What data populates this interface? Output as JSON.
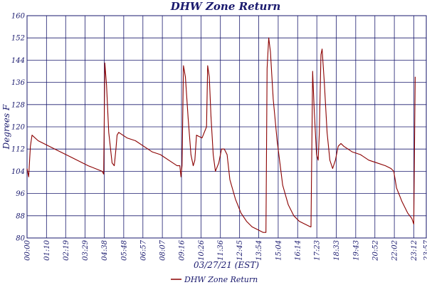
{
  "chart_data": {
    "type": "line",
    "title": "DHW Zone Return",
    "xlabel": "03/27/21 (EST)",
    "ylabel": "Degrees F",
    "ylim": [
      80,
      160
    ],
    "yticks": [
      "80",
      "88",
      "96",
      "104",
      "112",
      "120",
      "128",
      "136",
      "144",
      "152",
      "160"
    ],
    "xlim": [
      "00:00",
      "23:57"
    ],
    "xticks": [
      "00:00",
      "01:10",
      "02:19",
      "03:29",
      "04:38",
      "05:48",
      "06:57",
      "08:07",
      "09:16",
      "10:26",
      "11:36",
      "12:45",
      "13:54",
      "15:04",
      "16:14",
      "17:23",
      "18:33",
      "19:43",
      "20:52",
      "22:02",
      "23:12",
      "23:57"
    ],
    "grid": true,
    "legend_position": "bottom",
    "series": [
      {
        "name": "DHW Zone Return",
        "color": "#8b0000",
        "points": [
          [
            "00:00",
            105
          ],
          [
            "00:06",
            102
          ],
          [
            "00:12",
            113
          ],
          [
            "00:18",
            117
          ],
          [
            "00:40",
            115
          ],
          [
            "01:40",
            112
          ],
          [
            "02:40",
            109
          ],
          [
            "03:40",
            106
          ],
          [
            "04:30",
            104
          ],
          [
            "04:36",
            103
          ],
          [
            "04:40",
            143
          ],
          [
            "04:46",
            135
          ],
          [
            "04:54",
            118
          ],
          [
            "05:06",
            107
          ],
          [
            "05:14",
            106
          ],
          [
            "05:20",
            112
          ],
          [
            "05:24",
            117
          ],
          [
            "05:30",
            118
          ],
          [
            "06:00",
            116
          ],
          [
            "06:30",
            115
          ],
          [
            "07:00",
            113
          ],
          [
            "07:30",
            111
          ],
          [
            "08:00",
            110
          ],
          [
            "08:30",
            108
          ],
          [
            "09:00",
            106
          ],
          [
            "09:10",
            106
          ],
          [
            "09:14",
            102
          ],
          [
            "09:18",
            106
          ],
          [
            "09:23",
            142
          ],
          [
            "09:30",
            138
          ],
          [
            "09:40",
            123
          ],
          [
            "09:50",
            110
          ],
          [
            "09:58",
            106
          ],
          [
            "10:04",
            108
          ],
          [
            "10:10",
            117
          ],
          [
            "10:30",
            116
          ],
          [
            "10:46",
            120
          ],
          [
            "10:50",
            142
          ],
          [
            "10:56",
            138
          ],
          [
            "11:02",
            124
          ],
          [
            "11:10",
            110
          ],
          [
            "11:18",
            104
          ],
          [
            "11:30",
            107
          ],
          [
            "11:40",
            112
          ],
          [
            "11:50",
            112
          ],
          [
            "12:00",
            110
          ],
          [
            "12:10",
            101
          ],
          [
            "12:30",
            94
          ],
          [
            "12:50",
            89
          ],
          [
            "13:10",
            86
          ],
          [
            "13:30",
            84
          ],
          [
            "13:50",
            83
          ],
          [
            "14:10",
            82
          ],
          [
            "14:20",
            82
          ],
          [
            "14:24",
            141
          ],
          [
            "14:30",
            152
          ],
          [
            "14:36",
            147
          ],
          [
            "14:46",
            130
          ],
          [
            "15:00",
            115
          ],
          [
            "15:20",
            99
          ],
          [
            "15:40",
            92
          ],
          [
            "16:00",
            88
          ],
          [
            "16:20",
            86
          ],
          [
            "16:40",
            85
          ],
          [
            "17:00",
            84
          ],
          [
            "17:02",
            84
          ],
          [
            "17:04",
            104
          ],
          [
            "17:08",
            140
          ],
          [
            "17:14",
            125
          ],
          [
            "17:22",
            110
          ],
          [
            "17:28",
            108
          ],
          [
            "17:32",
            118
          ],
          [
            "17:38",
            146
          ],
          [
            "17:42",
            148
          ],
          [
            "17:50",
            136
          ],
          [
            "18:00",
            118
          ],
          [
            "18:10",
            108
          ],
          [
            "18:20",
            105
          ],
          [
            "18:30",
            108
          ],
          [
            "18:40",
            113
          ],
          [
            "18:50",
            114
          ],
          [
            "19:00",
            113
          ],
          [
            "19:30",
            111
          ],
          [
            "20:00",
            110
          ],
          [
            "20:30",
            108
          ],
          [
            "21:00",
            107
          ],
          [
            "21:30",
            106
          ],
          [
            "21:50",
            105
          ],
          [
            "22:00",
            104
          ],
          [
            "22:10",
            98
          ],
          [
            "22:30",
            93
          ],
          [
            "22:50",
            89
          ],
          [
            "23:05",
            87
          ],
          [
            "23:12",
            85
          ],
          [
            "23:17",
            138
          ]
        ]
      }
    ]
  }
}
